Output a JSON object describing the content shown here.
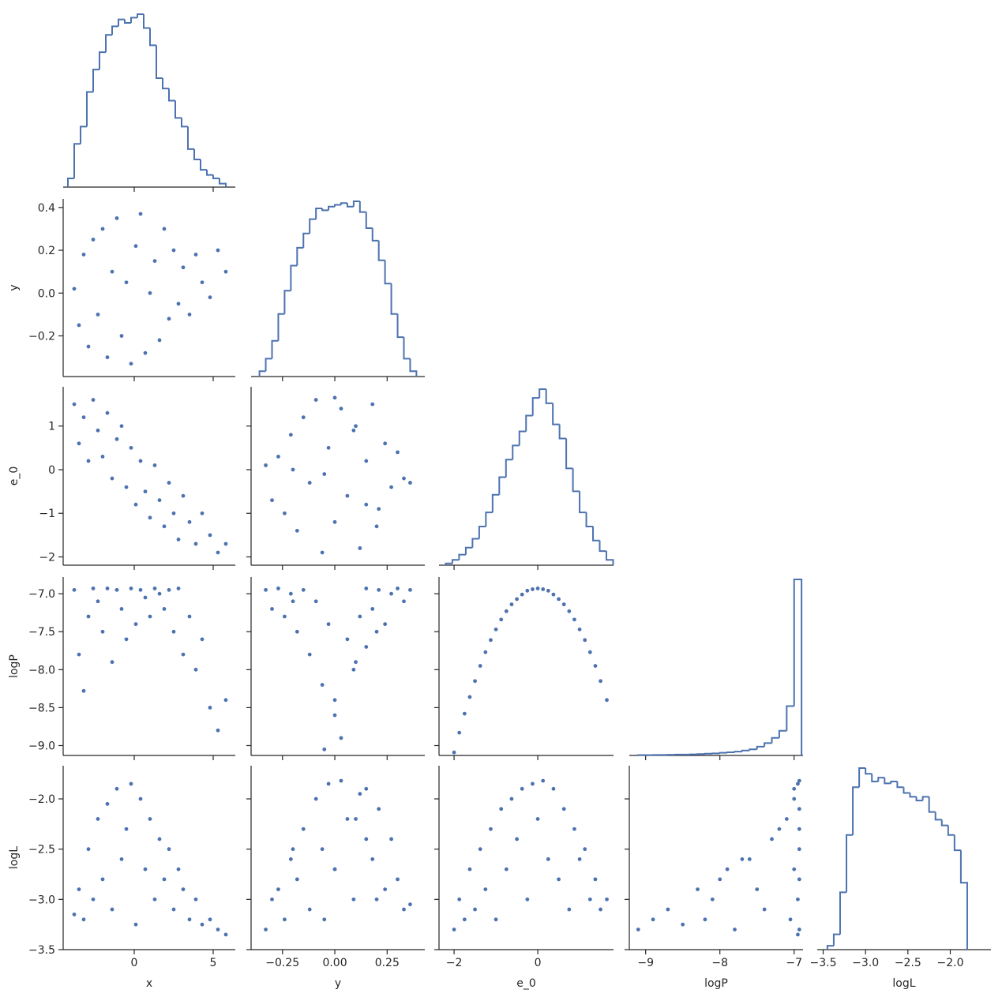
{
  "chart_data": {
    "type": "pairplot",
    "color": "#4c72b0",
    "variables": [
      {
        "name": "x",
        "xlim": [
          -4.5,
          6.4
        ],
        "xticks": [
          0,
          5
        ],
        "bins": [
          -4.2,
          -3.8,
          -3.4,
          -3.0,
          -2.6,
          -2.2,
          -1.8,
          -1.4,
          -1.0,
          -0.6,
          -0.2,
          0.2,
          0.6,
          1.0,
          1.4,
          1.8,
          2.2,
          2.6,
          3.0,
          3.4,
          3.8,
          4.2,
          4.6,
          5.0,
          5.4,
          5.8
        ],
        "counts": [
          5,
          25,
          35,
          55,
          68,
          78,
          88,
          93,
          97,
          95,
          98,
          100,
          92,
          82,
          63,
          57,
          50,
          40,
          35,
          22,
          16,
          10,
          7,
          5,
          2
        ]
      },
      {
        "name": "y",
        "xlim": [
          -0.4,
          0.43
        ],
        "xticks": [
          {
            "value": -0.25,
            "label": "−0.25"
          },
          {
            "value": 0,
            "label": "0.00"
          },
          {
            "value": 0.25,
            "label": "0.25"
          }
        ],
        "ylim": [
          -0.39,
          0.44
        ],
        "yticks": [
          {
            "value": -0.2,
            "label": "−0.2"
          },
          {
            "value": 0,
            "label": "0.0"
          },
          {
            "value": 0.2,
            "label": "0.2"
          },
          {
            "value": 0.4,
            "label": "0.4"
          }
        ],
        "bins": [
          -0.36,
          -0.33,
          -0.3,
          -0.27,
          -0.24,
          -0.21,
          -0.18,
          -0.15,
          -0.12,
          -0.09,
          -0.06,
          -0.03,
          0.0,
          0.03,
          0.06,
          0.09,
          0.12,
          0.15,
          0.18,
          0.21,
          0.24,
          0.27,
          0.3,
          0.33,
          0.36,
          0.39
        ],
        "counts": [
          3,
          10,
          20,
          35,
          48,
          62,
          72,
          80,
          88,
          94,
          93,
          95,
          96,
          97,
          95,
          98,
          92,
          83,
          76,
          65,
          52,
          35,
          22,
          10,
          3
        ]
      },
      {
        "name": "e_0",
        "xlim": [
          -2.36,
          1.81
        ],
        "xticks": [
          {
            "value": -2,
            "label": "−2"
          },
          0
        ],
        "ylim": [
          -2.19,
          1.9
        ],
        "yticks": [
          {
            "value": -2,
            "label": "−2"
          },
          {
            "value": -1,
            "label": "−1"
          },
          0,
          1
        ],
        "bins": [
          -2.2,
          -2.04,
          -1.88,
          -1.72,
          -1.56,
          -1.4,
          -1.24,
          -1.08,
          -0.92,
          -0.76,
          -0.6,
          -0.44,
          -0.28,
          -0.12,
          0.04,
          0.2,
          0.36,
          0.52,
          0.68,
          0.84,
          1.0,
          1.16,
          1.32,
          1.48,
          1.64,
          1.8
        ],
        "counts": [
          1,
          3,
          6,
          10,
          15,
          22,
          30,
          40,
          50,
          60,
          68,
          76,
          85,
          95,
          100,
          92,
          80,
          72,
          55,
          42,
          30,
          22,
          14,
          8,
          3
        ]
      },
      {
        "name": "logP",
        "xlim": [
          -9.22,
          -6.88
        ],
        "xticks": [
          {
            "value": -9,
            "label": "−9"
          },
          {
            "value": -8,
            "label": "−8"
          },
          {
            "value": -7,
            "label": "−7"
          }
        ],
        "ylim": [
          -9.13,
          -6.78
        ],
        "yticks": [
          {
            "value": -9,
            "label": "−9.0"
          },
          {
            "value": -8.5,
            "label": "−8.5"
          },
          {
            "value": -8,
            "label": "−8.0"
          },
          {
            "value": -7.5,
            "label": "−7.5"
          },
          {
            "value": -7,
            "label": "−7.0"
          }
        ],
        "bins": [
          -9.1,
          -9.0,
          -8.9,
          -8.8,
          -8.7,
          -8.6,
          -8.5,
          -8.4,
          -8.3,
          -8.2,
          -8.1,
          -8.0,
          -7.9,
          -7.8,
          -7.7,
          -7.6,
          -7.5,
          -7.4,
          -7.3,
          -7.2,
          -7.1,
          -7.0,
          -6.9
        ],
        "counts": [
          0.2,
          0.2,
          0.3,
          0.3,
          0.4,
          0.5,
          0.5,
          0.6,
          0.8,
          1,
          1.2,
          1.5,
          1.8,
          2.2,
          2.8,
          3.5,
          5,
          7,
          10,
          14,
          28,
          100
        ]
      },
      {
        "name": "logL",
        "xlim": [
          -3.57,
          -1.52
        ],
        "xticks": [
          {
            "value": -3.5,
            "label": "−3.5"
          },
          {
            "value": -3,
            "label": "−3.0"
          },
          {
            "value": -2.5,
            "label": "−2.5"
          },
          {
            "value": -2,
            "label": "−2.0"
          }
        ],
        "ylim": [
          -3.5,
          -1.67
        ],
        "yticks": [
          {
            "value": -3.5,
            "label": "−3.5"
          },
          {
            "value": -3,
            "label": "−3.0"
          },
          {
            "value": -2.5,
            "label": "−2.5"
          },
          {
            "value": -2,
            "label": "−2.0"
          }
        ],
        "bins": [
          -3.45,
          -3.375,
          -3.3,
          -3.225,
          -3.15,
          -3.075,
          -3.0,
          -2.925,
          -2.85,
          -2.775,
          -2.7,
          -2.625,
          -2.55,
          -2.475,
          -2.4,
          -2.325,
          -2.25,
          -2.175,
          -2.1,
          -2.025,
          -1.95,
          -1.875,
          -1.8
        ],
        "counts": [
          2,
          8,
          30,
          60,
          85,
          95,
          92,
          88,
          90,
          87,
          88,
          85,
          82,
          80,
          78,
          80,
          72,
          68,
          65,
          60,
          52,
          35
        ]
      }
    ],
    "scatter": [
      {
        "x": [
          -3.8,
          -3.5,
          -3.2,
          -2.9,
          -2.6,
          -2.3,
          -2.0,
          -1.7,
          -1.4,
          -1.1,
          -0.8,
          -0.5,
          -0.2,
          0.1,
          0.4,
          0.7,
          1.0,
          1.3,
          1.6,
          1.9,
          2.2,
          2.5,
          2.8,
          3.1,
          3.5,
          3.9,
          4.3,
          4.8,
          5.3,
          5.8
        ],
        "y": [
          0.02,
          -0.15,
          0.18,
          -0.25,
          0.25,
          -0.1,
          0.3,
          -0.3,
          0.1,
          0.35,
          -0.2,
          0.05,
          -0.33,
          0.22,
          0.37,
          -0.28,
          0.0,
          0.15,
          -0.22,
          0.3,
          -0.12,
          0.2,
          -0.05,
          0.12,
          -0.1,
          0.18,
          0.05,
          -0.02,
          0.2,
          0.1
        ]
      },
      {
        "x": [
          -3.8,
          -3.5,
          -3.2,
          -2.9,
          -2.6,
          -2.3,
          -2.0,
          -1.7,
          -1.4,
          -1.1,
          -0.8,
          -0.5,
          -0.2,
          0.1,
          0.4,
          0.7,
          1.0,
          1.3,
          1.6,
          1.9,
          2.2,
          2.5,
          2.8,
          3.1,
          3.5,
          3.9,
          4.3,
          4.8,
          5.3,
          5.8
        ],
        "y": [
          1.5,
          0.6,
          1.2,
          0.2,
          1.6,
          0.9,
          0.3,
          1.3,
          -0.2,
          0.7,
          1.0,
          -0.4,
          0.5,
          -0.8,
          0.2,
          -0.5,
          -1.1,
          0.1,
          -0.7,
          -1.3,
          -0.3,
          -1.0,
          -1.6,
          -0.6,
          -1.2,
          -1.7,
          -1.0,
          -1.5,
          -1.9,
          -1.7
        ]
      },
      {
        "x": [
          -0.33,
          -0.3,
          -0.27,
          -0.24,
          -0.21,
          -0.18,
          -0.15,
          -0.12,
          -0.09,
          -0.06,
          -0.03,
          0.0,
          0.03,
          0.06,
          0.09,
          0.12,
          0.15,
          0.18,
          0.21,
          0.24,
          0.27,
          0.3,
          0.33,
          0.36,
          -0.2,
          -0.05,
          0.1,
          0.2,
          0.0,
          0.15
        ],
        "y": [
          0.1,
          -0.7,
          0.3,
          -1.0,
          0.8,
          -1.4,
          1.2,
          -0.3,
          1.6,
          -1.9,
          0.5,
          -1.2,
          1.4,
          -0.6,
          0.9,
          -1.8,
          0.2,
          1.5,
          -0.9,
          0.6,
          -0.4,
          0.4,
          -0.2,
          -0.3,
          0.0,
          -0.1,
          1.0,
          -1.3,
          1.65,
          -0.8
        ]
      },
      {
        "x": [
          -3.8,
          -3.5,
          -3.2,
          -2.9,
          -2.6,
          -2.3,
          -2.0,
          -1.7,
          -1.4,
          -1.1,
          -0.8,
          -0.5,
          -0.2,
          0.1,
          0.4,
          0.7,
          1.0,
          1.3,
          1.6,
          1.9,
          2.2,
          2.5,
          2.8,
          3.1,
          3.5,
          3.9,
          4.3,
          4.8,
          5.3,
          5.8
        ],
        "y": [
          -6.95,
          -7.8,
          -8.28,
          -7.3,
          -6.93,
          -7.1,
          -7.5,
          -6.93,
          -7.9,
          -6.95,
          -7.2,
          -7.6,
          -6.93,
          -7.4,
          -6.95,
          -7.05,
          -7.3,
          -6.93,
          -7.0,
          -7.2,
          -6.95,
          -7.5,
          -6.93,
          -7.8,
          -7.3,
          -8.0,
          -7.6,
          -8.5,
          -8.8,
          -8.4
        ]
      },
      {
        "x": [
          -0.33,
          -0.3,
          -0.27,
          -0.24,
          -0.21,
          -0.18,
          -0.15,
          -0.12,
          -0.09,
          -0.06,
          -0.03,
          0.0,
          0.03,
          0.06,
          0.09,
          0.12,
          0.15,
          0.18,
          0.21,
          0.24,
          0.27,
          0.3,
          0.33,
          0.36,
          -0.2,
          -0.05,
          0.1,
          0.2,
          0.0,
          0.15
        ],
        "y": [
          -6.95,
          -7.2,
          -6.93,
          -7.3,
          -7.0,
          -7.5,
          -6.95,
          -7.8,
          -7.1,
          -8.2,
          -7.4,
          -8.6,
          -8.9,
          -7.6,
          -8.0,
          -7.3,
          -7.7,
          -7.2,
          -6.95,
          -7.4,
          -7.0,
          -6.93,
          -7.1,
          -6.95,
          -7.1,
          -9.05,
          -7.9,
          -7.5,
          -8.4,
          -6.93
        ]
      },
      {
        "x": [
          -2.0,
          -1.875,
          -1.75,
          -1.625,
          -1.5,
          -1.375,
          -1.25,
          -1.125,
          -1.0,
          -0.875,
          -0.75,
          -0.625,
          -0.5,
          -0.375,
          -0.25,
          -0.125,
          0,
          0.125,
          0.25,
          0.375,
          0.5,
          0.625,
          0.75,
          0.875,
          1.0,
          1.125,
          1.25,
          1.375,
          1.5,
          1.65
        ],
        "y": [
          -9.09,
          -8.83,
          -8.58,
          -8.36,
          -8.15,
          -7.95,
          -7.77,
          -7.61,
          -7.47,
          -7.34,
          -7.23,
          -7.14,
          -7.07,
          -7.01,
          -6.96,
          -6.94,
          -6.93,
          -6.94,
          -6.96,
          -7.01,
          -7.07,
          -7.14,
          -7.23,
          -7.34,
          -7.47,
          -7.61,
          -7.77,
          -7.95,
          -8.15,
          -8.4
        ]
      },
      {
        "x": [
          -3.8,
          -3.5,
          -3.2,
          -2.9,
          -2.6,
          -2.3,
          -2.0,
          -1.7,
          -1.4,
          -1.1,
          -0.8,
          -0.5,
          -0.2,
          0.1,
          0.4,
          0.7,
          1.0,
          1.3,
          1.6,
          1.9,
          2.2,
          2.5,
          2.8,
          3.1,
          3.5,
          3.9,
          4.3,
          4.8,
          5.3,
          5.8
        ],
        "y": [
          -3.15,
          -2.9,
          -3.2,
          -2.5,
          -3.0,
          -2.2,
          -2.8,
          -2.05,
          -3.1,
          -1.9,
          -2.6,
          -2.3,
          -1.85,
          -3.25,
          -2.0,
          -2.7,
          -2.2,
          -3.0,
          -2.4,
          -2.8,
          -2.5,
          -3.1,
          -2.7,
          -2.9,
          -3.2,
          -3.0,
          -3.25,
          -3.2,
          -3.3,
          -3.35
        ]
      },
      {
        "x": [
          -0.33,
          -0.3,
          -0.27,
          -0.24,
          -0.21,
          -0.18,
          -0.15,
          -0.12,
          -0.09,
          -0.06,
          -0.03,
          0.0,
          0.03,
          0.06,
          0.09,
          0.12,
          0.15,
          0.18,
          0.21,
          0.24,
          0.27,
          0.3,
          0.33,
          0.36,
          -0.2,
          -0.05,
          0.1,
          0.2,
          0.0,
          0.15
        ],
        "y": [
          -3.3,
          -3.0,
          -2.9,
          -3.2,
          -2.6,
          -2.8,
          -2.3,
          -3.1,
          -2.0,
          -2.5,
          -1.85,
          -2.7,
          -1.82,
          -2.2,
          -3.0,
          -1.95,
          -2.4,
          -2.6,
          -2.1,
          -2.9,
          -2.4,
          -2.8,
          -3.1,
          -3.05,
          -2.5,
          -3.2,
          -2.2,
          -3.0,
          -2.7,
          -1.9
        ]
      },
      {
        "x": [
          -2.0,
          -1.875,
          -1.75,
          -1.625,
          -1.5,
          -1.375,
          -1.25,
          -1.125,
          -1.0,
          -0.875,
          -0.75,
          -0.625,
          -0.5,
          -0.375,
          -0.25,
          -0.125,
          0,
          0.125,
          0.25,
          0.375,
          0.5,
          0.625,
          0.75,
          0.875,
          1.0,
          1.125,
          1.25,
          1.375,
          1.5,
          1.65
        ],
        "y": [
          -3.3,
          -3.0,
          -3.2,
          -2.7,
          -3.1,
          -2.5,
          -2.9,
          -2.3,
          -3.2,
          -2.1,
          -2.7,
          -2.0,
          -2.4,
          -1.9,
          -3.0,
          -1.85,
          -2.2,
          -1.82,
          -2.6,
          -1.9,
          -2.8,
          -2.1,
          -3.1,
          -2.3,
          -2.6,
          -2.5,
          -3.0,
          -2.8,
          -3.1,
          -3.0
        ]
      },
      {
        "x": [
          -9.1,
          -8.9,
          -8.7,
          -8.5,
          -8.3,
          -8.1,
          -7.9,
          -7.7,
          -7.5,
          -7.3,
          -7.1,
          -7.0,
          -6.95,
          -6.93,
          -6.93,
          -6.93,
          -6.95,
          -7.0,
          -7.05,
          -7.2,
          -7.4,
          -7.6,
          -7.8,
          -8.0,
          -8.2,
          -6.93,
          -6.93,
          -6.95,
          -7.0,
          -6.93
        ],
        "y": [
          -3.3,
          -3.2,
          -3.1,
          -3.25,
          -2.9,
          -3.0,
          -2.7,
          -2.6,
          -2.9,
          -2.4,
          -2.2,
          -2.0,
          -1.85,
          -1.82,
          -2.5,
          -3.3,
          -3.0,
          -2.7,
          -3.2,
          -2.3,
          -3.1,
          -2.6,
          -3.3,
          -2.8,
          -3.2,
          -2.1,
          -2.8,
          -3.35,
          -1.9,
          -2.3
        ]
      }
    ]
  }
}
